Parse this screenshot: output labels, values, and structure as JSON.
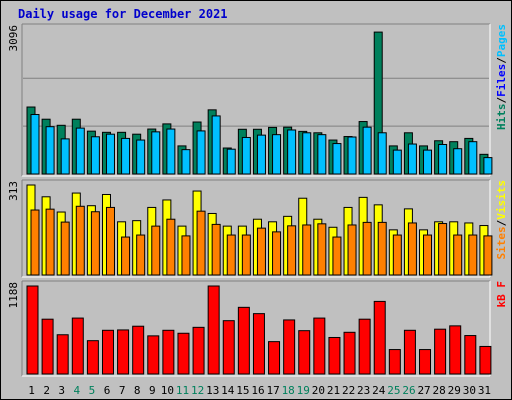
{
  "title": "Daily usage for December 2021",
  "colors": {
    "hits": "#00805c",
    "files": "#0000ff",
    "pages": "#00c0ff",
    "visits": "#ffff00",
    "sites": "#ff8000",
    "kbf": "#ff0000",
    "weekday_label": "#000000",
    "weekend_label": "#00805c"
  },
  "chart_data": [
    {
      "type": "bar",
      "panel": "top",
      "y_max_label": "3096",
      "ylim": [
        0,
        3096
      ],
      "categories": [
        "1",
        "2",
        "3",
        "4",
        "5",
        "6",
        "7",
        "8",
        "9",
        "10",
        "11",
        "12",
        "13",
        "14",
        "15",
        "16",
        "17",
        "18",
        "19",
        "20",
        "21",
        "22",
        "23",
        "24",
        "25",
        "26",
        "27",
        "28",
        "29",
        "30",
        "31"
      ],
      "weekend_days": [
        "4",
        "5",
        "11",
        "12",
        "18",
        "19",
        "25",
        "26"
      ],
      "legend": [
        "Hits",
        "/",
        "Files",
        "/",
        "Pages"
      ],
      "series": [
        {
          "name": "Hits",
          "color_key": "hits",
          "values": [
            1430,
            1170,
            1040,
            1170,
            915,
            890,
            890,
            850,
            960,
            1070,
            600,
            1110,
            1370,
            555,
            955,
            955,
            995,
            1000,
            910,
            880,
            725,
            800,
            1120,
            3030,
            600,
            880,
            600,
            710,
            690,
            760,
            420
          ]
        },
        {
          "name": "Pages",
          "color_key": "pages",
          "values": [
            1270,
            1010,
            750,
            980,
            795,
            850,
            760,
            725,
            900,
            960,
            520,
            920,
            1240,
            530,
            780,
            830,
            840,
            940,
            880,
            840,
            650,
            790,
            1000,
            880,
            510,
            640,
            510,
            630,
            540,
            690,
            350
          ]
        }
      ]
    },
    {
      "type": "bar",
      "panel": "middle",
      "y_max_label": "313",
      "ylim": [
        0,
        313
      ],
      "categories": [
        "1",
        "2",
        "3",
        "4",
        "5",
        "6",
        "7",
        "8",
        "9",
        "10",
        "11",
        "12",
        "13",
        "14",
        "15",
        "16",
        "17",
        "18",
        "19",
        "20",
        "21",
        "22",
        "23",
        "24",
        "25",
        "26",
        "27",
        "28",
        "29",
        "30",
        "31"
      ],
      "legend": [
        "Sites",
        "/",
        "Visits"
      ],
      "series": [
        {
          "name": "Visits",
          "color_key": "visits",
          "values": [
            313,
            272,
            219,
            285,
            241,
            280,
            185,
            189,
            235,
            261,
            170,
            292,
            214,
            170,
            170,
            194,
            185,
            204,
            267,
            194,
            166,
            235,
            270,
            244,
            157,
            230,
            157,
            185,
            185,
            181,
            172
          ]
        },
        {
          "name": "Sites",
          "color_key": "sites",
          "values": [
            226,
            229,
            184,
            239,
            220,
            235,
            132,
            139,
            170,
            194,
            136,
            222,
            176,
            139,
            139,
            163,
            150,
            171,
            174,
            178,
            132,
            174,
            183,
            183,
            139,
            181,
            139,
            179,
            139,
            139,
            136
          ]
        }
      ]
    },
    {
      "type": "bar",
      "panel": "bottom",
      "y_max_label": "1188",
      "ylim": [
        0,
        1188
      ],
      "categories": [
        "1",
        "2",
        "3",
        "4",
        "5",
        "6",
        "7",
        "8",
        "9",
        "10",
        "11",
        "12",
        "13",
        "14",
        "15",
        "16",
        "17",
        "18",
        "19",
        "20",
        "21",
        "22",
        "23",
        "24",
        "25",
        "26",
        "27",
        "28",
        "29",
        "30",
        "31"
      ],
      "legend": [
        "kB F"
      ],
      "series": [
        {
          "name": "kB F",
          "color_key": "kbf",
          "values": [
            1188,
            740,
            530,
            755,
            450,
            590,
            595,
            645,
            515,
            590,
            550,
            630,
            1188,
            720,
            900,
            815,
            437,
            730,
            585,
            755,
            493,
            563,
            740,
            980,
            330,
            590,
            330,
            605,
            650,
            519,
            372
          ]
        }
      ]
    }
  ]
}
